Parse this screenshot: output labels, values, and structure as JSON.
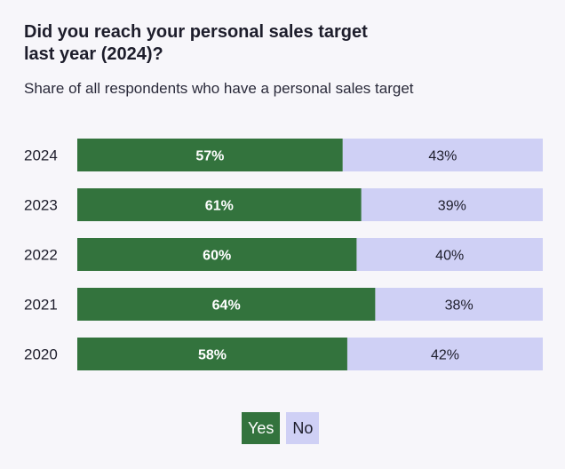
{
  "chart_data": {
    "type": "bar",
    "stacked": true,
    "orientation": "horizontal",
    "title": "Did you reach your personal sales target last year (2024)?",
    "subtitle": "Share of all respondents who have a personal sales target",
    "categories": [
      "2024",
      "2023",
      "2022",
      "2021",
      "2020"
    ],
    "series": [
      {
        "name": "Yes",
        "values": [
          57,
          61,
          60,
          64,
          58
        ],
        "color": "#33733d",
        "label_color": "#ffffff"
      },
      {
        "name": "No",
        "values": [
          43,
          39,
          40,
          38,
          42
        ],
        "color": "#cfd0f5",
        "label_color": "#1d1d2b"
      }
    ],
    "value_suffix": "%",
    "xlim": [
      0,
      100
    ],
    "grid": false,
    "legend_position": "bottom"
  }
}
